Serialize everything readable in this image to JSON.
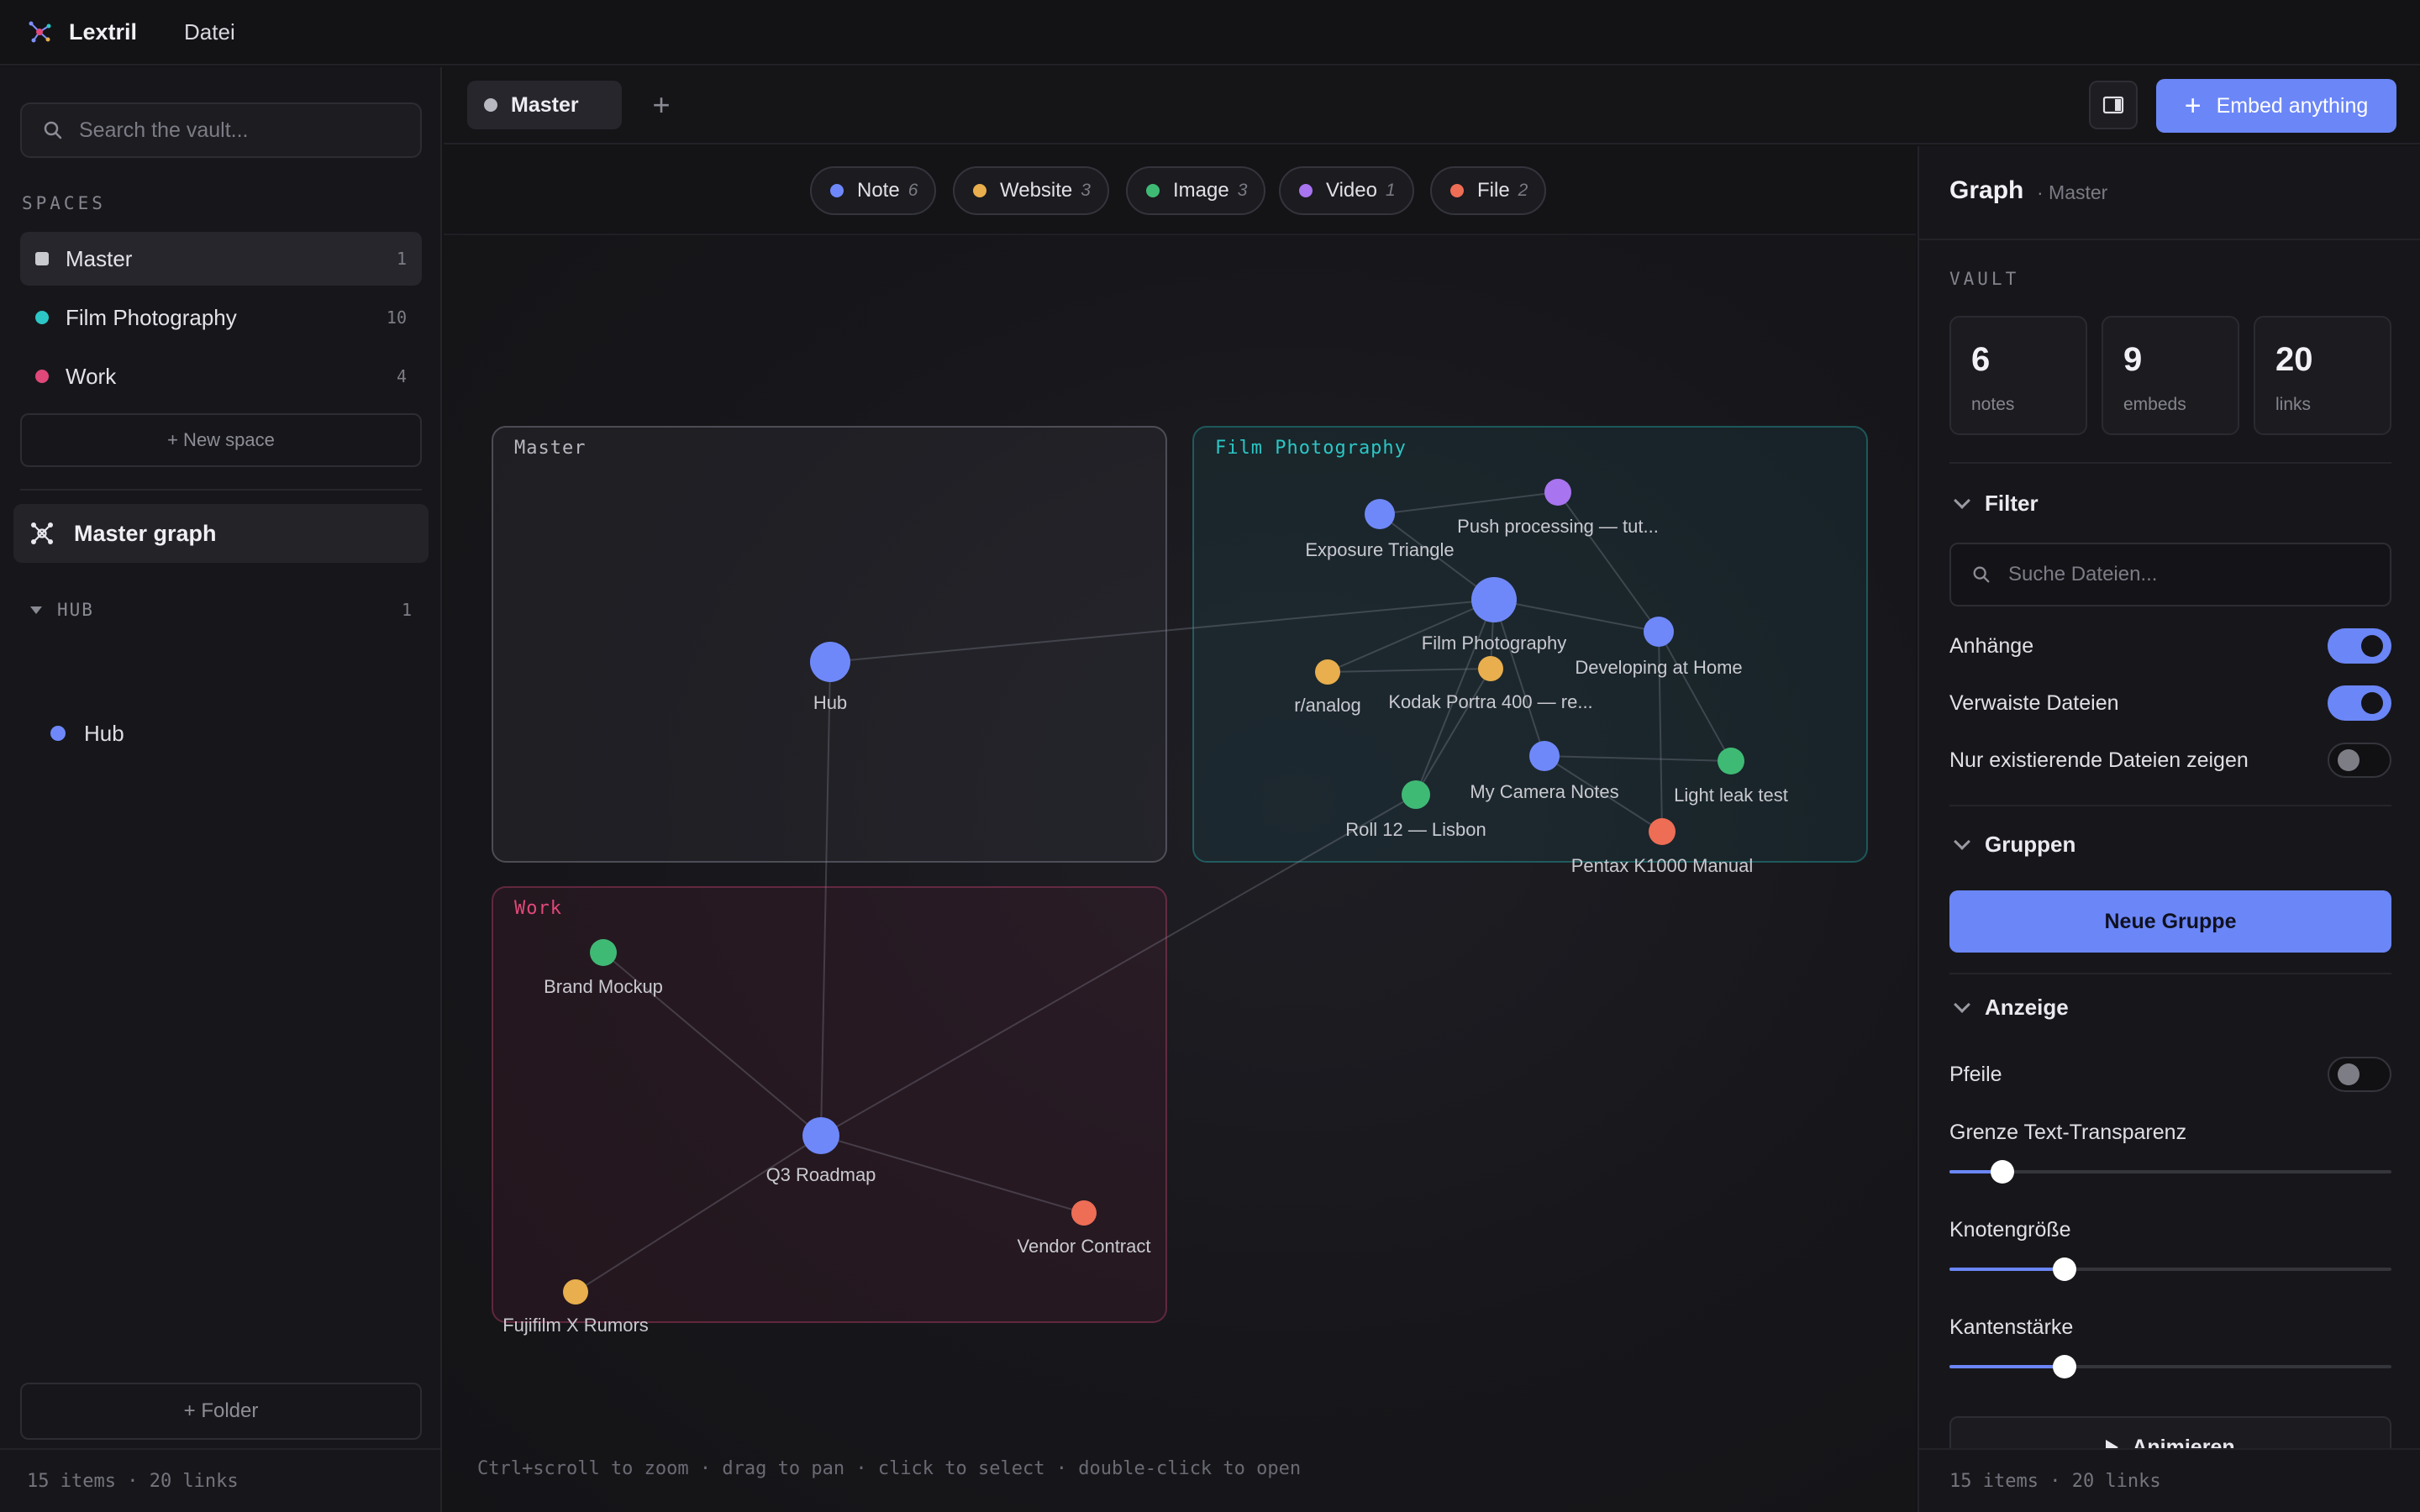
{
  "app": {
    "title": "Lextril",
    "menu": [
      "Datei"
    ]
  },
  "sidebar": {
    "search_placeholder": "Search the vault...",
    "spaces_heading": "SPACES",
    "spaces": [
      {
        "label": "Master",
        "count": "1",
        "color": "#c9c9d0",
        "active": true
      },
      {
        "label": "Film Photography",
        "count": "10",
        "color": "#2cc6c6",
        "active": false
      },
      {
        "label": "Work",
        "count": "4",
        "color": "#e0487a",
        "active": false
      }
    ],
    "new_space_label": "+ New space",
    "master_graph_label": "Master graph",
    "hub_group": {
      "label": "HUB",
      "count": "1"
    },
    "hub_item": "Hub",
    "folder_label": "+ Folder",
    "footer": "15 items · 20 links"
  },
  "tabs": {
    "items": [
      {
        "label": "Master"
      }
    ],
    "add_label": "+",
    "embed_label": "Embed anything",
    "embed_plus": "+"
  },
  "graph": {
    "chips": [
      {
        "label": "Note",
        "count": "6",
        "color": "#6f88f9"
      },
      {
        "label": "Website",
        "count": "3",
        "color": "#e9ae4d"
      },
      {
        "label": "Image",
        "count": "3",
        "color": "#3fba75"
      },
      {
        "label": "Video",
        "count": "1",
        "color": "#a874f0"
      },
      {
        "label": "File",
        "count": "2",
        "color": "#ee6d55"
      }
    ],
    "groups": [
      {
        "id": "master",
        "label": "Master",
        "color": "#b8b8c0"
      },
      {
        "id": "film",
        "label": "Film Photography",
        "color": "#2cc6c6"
      },
      {
        "id": "work",
        "label": "Work",
        "color": "#e0487a"
      }
    ],
    "nodes": [
      {
        "id": "hub",
        "label": "Hub",
        "type": "note"
      },
      {
        "id": "exposure",
        "label": "Exposure Triangle",
        "type": "note"
      },
      {
        "id": "push",
        "label": "Push processing — tut...",
        "type": "video"
      },
      {
        "id": "film",
        "label": "Film Photography",
        "type": "note"
      },
      {
        "id": "developing",
        "label": "Developing at Home",
        "type": "note"
      },
      {
        "id": "ranalog",
        "label": "r/analog",
        "type": "website"
      },
      {
        "id": "kodak",
        "label": "Kodak Portra 400 — re...",
        "type": "website"
      },
      {
        "id": "camera",
        "label": "My Camera Notes",
        "type": "note"
      },
      {
        "id": "lightleak",
        "label": "Light leak test",
        "type": "image"
      },
      {
        "id": "roll12",
        "label": "Roll 12 — Lisbon",
        "type": "image"
      },
      {
        "id": "pentax",
        "label": "Pentax K1000 Manual",
        "type": "file"
      },
      {
        "id": "brand",
        "label": "Brand Mockup",
        "type": "image"
      },
      {
        "id": "q3",
        "label": "Q3 Roadmap",
        "type": "note"
      },
      {
        "id": "vendor",
        "label": "Vendor Contract",
        "type": "file"
      },
      {
        "id": "fujifilm",
        "label": "Fujifilm X Rumors",
        "type": "website"
      }
    ],
    "edges": [
      [
        "hub",
        "film"
      ],
      [
        "hub",
        "q3"
      ],
      [
        "q3",
        "roll12"
      ],
      [
        "q3",
        "brand"
      ],
      [
        "q3",
        "vendor"
      ],
      [
        "q3",
        "fujifilm"
      ],
      [
        "exposure",
        "push"
      ],
      [
        "exposure",
        "film"
      ],
      [
        "push",
        "developing"
      ],
      [
        "film",
        "developing"
      ],
      [
        "film",
        "ranalog"
      ],
      [
        "film",
        "kodak"
      ],
      [
        "film",
        "camera"
      ],
      [
        "film",
        "roll12"
      ],
      [
        "kodak",
        "roll12"
      ],
      [
        "camera",
        "lightleak"
      ],
      [
        "camera",
        "pentax"
      ],
      [
        "developing",
        "lightleak"
      ],
      [
        "developing",
        "pentax"
      ],
      [
        "ranalog",
        "kodak"
      ]
    ],
    "hint": "Ctrl+scroll to zoom · drag to pan · click to select · double-click to open"
  },
  "panel": {
    "title": "Graph",
    "subtitle": "· Master",
    "vault_heading": "VAULT",
    "stats": [
      {
        "value": "6",
        "label": "notes"
      },
      {
        "value": "9",
        "label": "embeds"
      },
      {
        "value": "20",
        "label": "links"
      }
    ],
    "filter": {
      "heading": "Filter",
      "search_placeholder": "Suche Dateien...",
      "toggles": [
        {
          "label": "Anhänge",
          "on": true
        },
        {
          "label": "Verwaiste Dateien",
          "on": true
        },
        {
          "label": "Nur existierende Dateien zeigen",
          "on": false
        }
      ]
    },
    "groups": {
      "heading": "Gruppen",
      "new_label": "Neue Gruppe"
    },
    "display": {
      "heading": "Anzeige",
      "arrows_label": "Pfeile",
      "arrows_on": false,
      "sliders": [
        {
          "label": "Grenze Text-Transparenz",
          "value": 0.12
        },
        {
          "label": "Knotengröße",
          "value": 0.26
        },
        {
          "label": "Kantenstärke",
          "value": 0.26
        }
      ]
    },
    "animate_label": "Animieren",
    "footer": "15 items · 20 links"
  }
}
